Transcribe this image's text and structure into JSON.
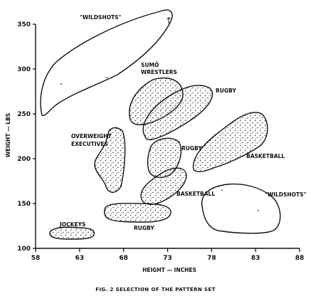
{
  "chart_data": {
    "type": "scatter",
    "x_axis": {
      "label": "HEIGHT — INCHES",
      "range": [
        58,
        88
      ],
      "ticks": [
        "58",
        "63",
        "68",
        "73",
        "78",
        "83",
        "88"
      ]
    },
    "y_axis": {
      "label": "WEIGHT — LBS",
      "range": [
        100,
        350
      ],
      "ticks": [
        "100",
        "150",
        "200",
        "250",
        "300",
        "350"
      ]
    },
    "regions": [
      {
        "label": "\"WILDSHOTS\"",
        "points_present": false,
        "approx_range": {
          "height": [
            58.8,
            73.5
          ],
          "weight": [
            245,
            365
          ]
        }
      },
      {
        "label": "SUMŌ WRESTLERS",
        "points_present": true,
        "approx_range": {
          "height": [
            68.5,
            73.5
          ],
          "weight": [
            240,
            286
          ]
        }
      },
      {
        "label": "RUGBY",
        "points_present": true,
        "approx_range": {
          "height": [
            70,
            79
          ],
          "weight": [
            225,
            282
          ]
        }
      },
      {
        "label": "OVERWEIGHT EXECUTIVES",
        "points_present": true,
        "approx_range": {
          "height": [
            65,
            68
          ],
          "weight": [
            160,
            231
          ]
        }
      },
      {
        "label": "RUGBY",
        "points_present": true,
        "approx_range": {
          "height": [
            70.5,
            74.5
          ],
          "weight": [
            180,
            224
          ]
        }
      },
      {
        "label": "BASKETBALL",
        "points_present": true,
        "approx_range": {
          "height": [
            76,
            84
          ],
          "weight": [
            185,
            254
          ]
        }
      },
      {
        "label": "BASKETBALL",
        "points_present": true,
        "approx_range": {
          "height": [
            70,
            75
          ],
          "weight": [
            150,
            192
          ]
        }
      },
      {
        "label": "\"WILDSHOTS\"",
        "points_present": false,
        "approx_range": {
          "height": [
            77,
            86.5
          ],
          "weight": [
            120,
            172
          ]
        }
      },
      {
        "label": "RUGBY",
        "points_present": true,
        "approx_range": {
          "height": [
            66,
            73
          ],
          "weight": [
            128,
            150
          ]
        }
      },
      {
        "label": "JOCKEYS",
        "points_present": true,
        "approx_range": {
          "height": [
            59.5,
            64.5
          ],
          "weight": [
            110,
            122
          ]
        }
      }
    ]
  },
  "caption": "FIG. 2  SELECTION OF THE PATTERN SET"
}
